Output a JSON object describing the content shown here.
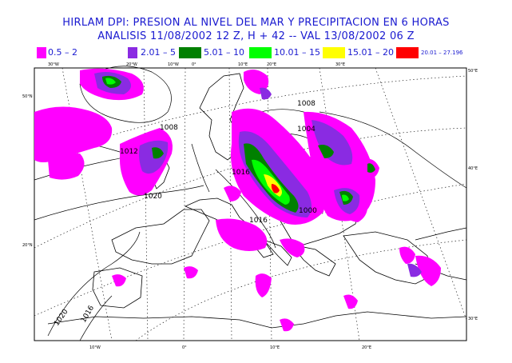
{
  "title": {
    "line1": "HIRLAM DPI:  PRESION AL NIVEL DEL MAR Y  PRECIPITACION EN  6 HORAS",
    "line2": "ANALISIS 11/08/2002  12 Z,  H + 42  -- VAL 13/08/2002  06 Z"
  },
  "legend": [
    {
      "label": "0.5  –  2",
      "color": "#ff00ff"
    },
    {
      "label": "2.01  –  5",
      "color": "#8a2be2"
    },
    {
      "label": "5.01  –  10",
      "color": "#008000"
    },
    {
      "label": "10.01  –  15",
      "color": "#00ff00"
    },
    {
      "label": "15.01  –  20",
      "color": "#ffff00"
    },
    {
      "label": "20.01  –  27.196",
      "color": "#ff0000"
    }
  ],
  "map": {
    "top_ticks": [
      "30°W",
      "20°W",
      "10°W",
      "0°",
      "10°E",
      "20°E",
      "30°E"
    ],
    "bottom_ticks": [
      "10°W",
      "0°",
      "10°E",
      "20°E"
    ],
    "left_ticks": [
      "50°N",
      "20°N"
    ],
    "right_ticks": [
      "50°E",
      "40°E",
      "30°E"
    ],
    "isobars": [
      "1008",
      "1012",
      "1020",
      "1008",
      "1016",
      "1004",
      "1000",
      "1016",
      "1020",
      "1016"
    ]
  }
}
